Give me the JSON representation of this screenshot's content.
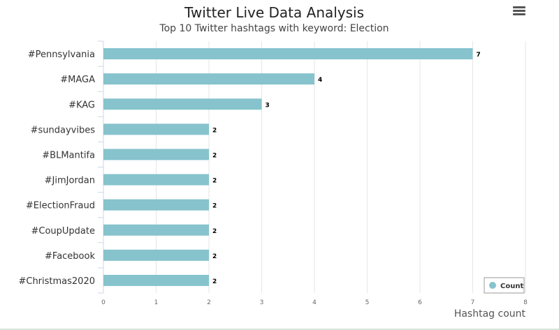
{
  "title": "Twitter Live Data Analysis",
  "subtitle": "Top 10 Twitter hashtags with keyword: Election",
  "menu_icon": "hamburger-menu-icon",
  "chart_data": {
    "type": "bar",
    "orientation": "horizontal",
    "categories": [
      "#Pennsylvania",
      "#MAGA",
      "#KAG",
      "#sundayvibes",
      "#BLMantifa",
      "#JimJordan",
      "#ElectionFraud",
      "#CoupUpdate",
      "#Facebook",
      "#Christmas2020"
    ],
    "series": [
      {
        "name": "Count",
        "values": [
          7,
          4,
          3,
          2,
          2,
          2,
          2,
          2,
          2,
          2
        ],
        "color": "#86c3cd"
      }
    ],
    "xlabel": "Hashtag count",
    "xlim": [
      0,
      8
    ],
    "xticks": [
      0,
      1,
      2,
      3,
      4,
      5,
      6,
      7,
      8
    ],
    "grid": true,
    "data_labels": true,
    "legend_position": "bottom-right"
  }
}
